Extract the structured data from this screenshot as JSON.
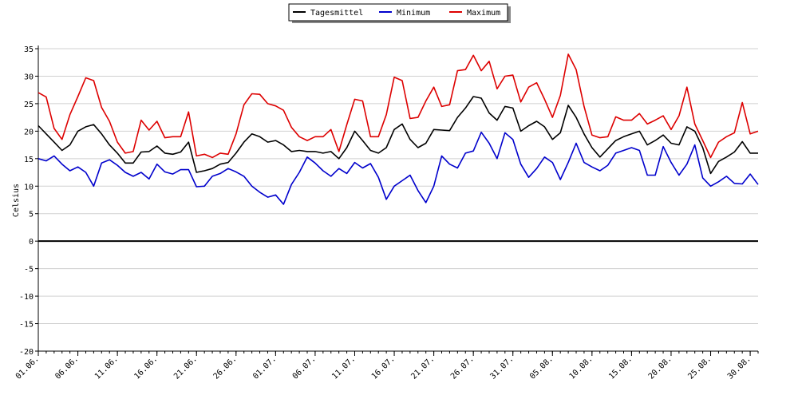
{
  "chart_data": {
    "type": "line",
    "ylabel": "Celsius",
    "ylim": [
      -20,
      35
    ],
    "yticks": [
      35,
      30,
      25,
      20,
      15,
      10,
      5,
      0,
      -5,
      -10,
      -15,
      -20
    ],
    "xlim": [
      0,
      91
    ],
    "xtick_labels": [
      "01.06.",
      "06.06.",
      "11.06.",
      "16.06.",
      "21.06.",
      "26.06.",
      "01.07.",
      "06.07.",
      "11.07.",
      "16.07.",
      "21.07.",
      "26.07.",
      "31.07.",
      "05.08.",
      "10.08.",
      "15.08.",
      "20.08.",
      "25.08.",
      "30.08."
    ],
    "xtick_step": 5,
    "grid": true,
    "zero_line": true,
    "legend_position": "top-center",
    "series": [
      {
        "name": "Tagesmittel",
        "color": "#000000",
        "values": [
          21.0,
          19.5,
          18.0,
          16.5,
          17.5,
          20.0,
          20.8,
          21.2,
          19.5,
          17.5,
          16.0,
          14.2,
          14.2,
          16.2,
          16.3,
          17.3,
          16.0,
          15.8,
          16.2,
          18.0,
          12.5,
          12.8,
          13.2,
          14.0,
          14.3,
          16.0,
          18.0,
          19.5,
          19.0,
          18.0,
          18.3,
          17.5,
          16.3,
          16.5,
          16.3,
          16.3,
          16.0,
          16.3,
          15.0,
          17.0,
          20.0,
          18.3,
          16.5,
          16.0,
          17.0,
          20.3,
          21.3,
          18.5,
          17.0,
          17.8,
          20.3,
          20.2,
          20.1,
          22.5,
          24.2,
          26.3,
          26.0,
          23.3,
          22.0,
          24.5,
          24.2,
          20.0,
          21.0,
          21.8,
          20.8,
          18.5,
          19.7,
          24.7,
          22.5,
          19.5,
          17.0,
          15.3,
          16.8,
          18.3,
          19.0,
          19.5,
          20.0,
          17.5,
          18.3,
          19.3,
          17.8,
          17.5,
          20.8,
          20.0,
          17.0,
          12.3,
          14.5,
          15.3,
          16.2,
          18.1,
          16.0,
          16.0
        ]
      },
      {
        "name": "Minimum",
        "color": "#0000cc",
        "values": [
          15.0,
          14.6,
          15.5,
          14.0,
          12.8,
          13.5,
          12.5,
          10.0,
          14.2,
          14.8,
          13.8,
          12.5,
          11.8,
          12.5,
          11.3,
          14.0,
          12.6,
          12.2,
          13.0,
          13.0,
          9.9,
          10.0,
          11.8,
          12.3,
          13.2,
          12.6,
          11.8,
          10.0,
          8.9,
          8.0,
          8.4,
          6.7,
          10.3,
          12.5,
          15.3,
          14.2,
          12.8,
          11.8,
          13.2,
          12.3,
          14.3,
          13.3,
          14.1,
          11.6,
          7.6,
          10.0,
          11.0,
          12.0,
          9.2,
          7.0,
          10.0,
          15.5,
          14.0,
          13.3,
          16.0,
          16.4,
          19.8,
          17.8,
          15.0,
          19.7,
          18.5,
          14.0,
          11.6,
          13.2,
          15.3,
          14.3,
          11.2,
          14.3,
          17.8,
          14.3,
          13.5,
          12.8,
          13.8,
          16.0,
          16.5,
          17.0,
          16.5,
          12.0,
          12.0,
          17.2,
          14.3,
          12.0,
          14.0,
          17.5,
          11.5,
          10.0,
          10.8,
          11.8,
          10.5,
          10.4,
          12.2,
          10.3
        ]
      },
      {
        "name": "Maximum",
        "color": "#dd0000",
        "values": [
          27.0,
          26.2,
          20.5,
          18.5,
          23.0,
          26.3,
          29.7,
          29.2,
          24.3,
          21.8,
          18.0,
          16.0,
          16.3,
          22.0,
          20.2,
          21.8,
          18.8,
          19.0,
          19.0,
          23.5,
          15.5,
          15.8,
          15.2,
          16.0,
          15.8,
          19.5,
          24.8,
          26.8,
          26.7,
          25.0,
          24.6,
          23.8,
          20.7,
          19.0,
          18.3,
          19.0,
          19.0,
          20.3,
          16.3,
          21.2,
          25.8,
          25.5,
          19.0,
          19.0,
          23.0,
          29.8,
          29.2,
          22.3,
          22.5,
          25.5,
          28.0,
          24.5,
          24.8,
          31.0,
          31.2,
          33.8,
          31.0,
          32.7,
          27.7,
          30.0,
          30.2,
          25.3,
          28.0,
          28.8,
          25.8,
          22.5,
          26.5,
          34.0,
          31.2,
          24.5,
          19.3,
          18.8,
          19.0,
          22.6,
          22.0,
          22.0,
          23.2,
          21.3,
          22.0,
          22.8,
          20.3,
          22.8,
          28.0,
          21.3,
          18.3,
          15.2,
          18.0,
          19.0,
          19.7,
          25.2,
          19.5,
          20.0
        ]
      }
    ]
  }
}
